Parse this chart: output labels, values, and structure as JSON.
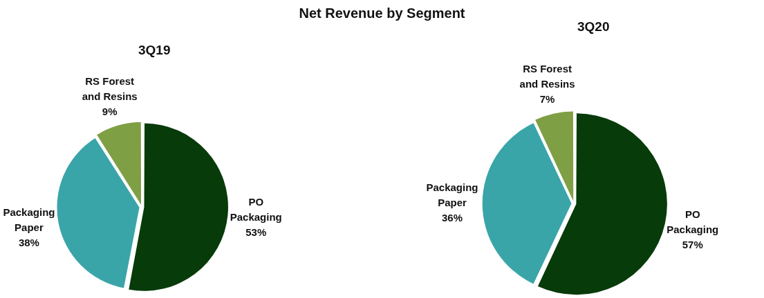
{
  "chart_data": [
    {
      "type": "pie",
      "title": "Net Revenue by Segment",
      "subtitle": "3Q19",
      "categories": [
        "PO Packaging",
        "Packaging Paper",
        "RS Forest and Resins"
      ],
      "values": [
        53,
        38,
        9
      ],
      "colors": [
        "#073b0a",
        "#3aa5a8",
        "#7f9f45"
      ],
      "value_labels": [
        "53%",
        "38%",
        "9%"
      ],
      "legend": false
    },
    {
      "type": "pie",
      "subtitle": "3Q20",
      "categories": [
        "PO Packaging",
        "Packaging Paper",
        "RS Forest and Resins"
      ],
      "values": [
        57,
        36,
        7
      ],
      "colors": [
        "#073b0a",
        "#3aa5a8",
        "#7f9f45"
      ],
      "value_labels": [
        "57%",
        "36%",
        "7%"
      ],
      "legend": false
    }
  ]
}
